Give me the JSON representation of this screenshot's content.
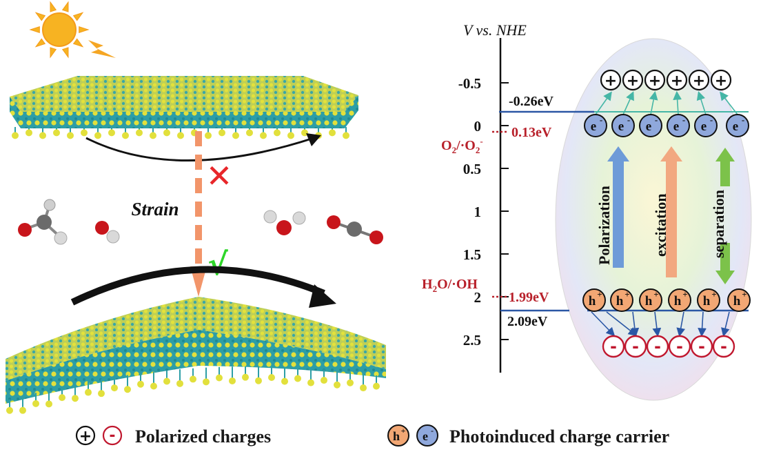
{
  "left_panel": {
    "strain_label": "Strain",
    "blocked_mark": "✕",
    "allowed_mark": "√"
  },
  "axis": {
    "title_v": "V",
    "title_rest": " vs. NHE",
    "ticks": [
      "-0.5",
      "0",
      "0.5",
      "1",
      "1.5",
      "2",
      "2.5"
    ]
  },
  "levels": {
    "cbm_label": "-0.26eV",
    "o2_value": "0.13eV",
    "o2_couple_main": "O",
    "o2_couple_sub1": "2",
    "o2_couple_mid": "/·O",
    "o2_couple_sub2": "2",
    "o2_couple_sup": "-",
    "h2o_value": "1.99eV",
    "h2o_couple_main": "H",
    "h2o_couple_sub": "2",
    "h2o_couple_rest": "O/·OH",
    "vbm_label": "2.09eV"
  },
  "carriers": {
    "positive": "+",
    "negative": "-",
    "electron": "e",
    "electron_sup": "-",
    "hole": "h",
    "hole_sup": "+"
  },
  "process_labels": {
    "polarization": "Polarization",
    "excitation": "excitation",
    "separation": "separation"
  },
  "legend": {
    "polarized_label": "Polarized charges",
    "photoinduced_label": "Photoinduced charge carrier"
  },
  "colors": {
    "hole_fill": "#f2a774",
    "electron_fill": "#8fa8dc",
    "negative_ring": "#c0172e",
    "level_line": "#2b57a5",
    "dashed_red": "#b8202a",
    "strain_arrow": "#f2956a",
    "cross": "#e8262a",
    "check": "#2fd62a",
    "polarization_arrow": "#6e9bd8",
    "excitation_arrow": "#f2a880",
    "separation_arrow": "#7cc24a",
    "sulfur": "#d9d93a",
    "metal": "#2e9fa8"
  }
}
